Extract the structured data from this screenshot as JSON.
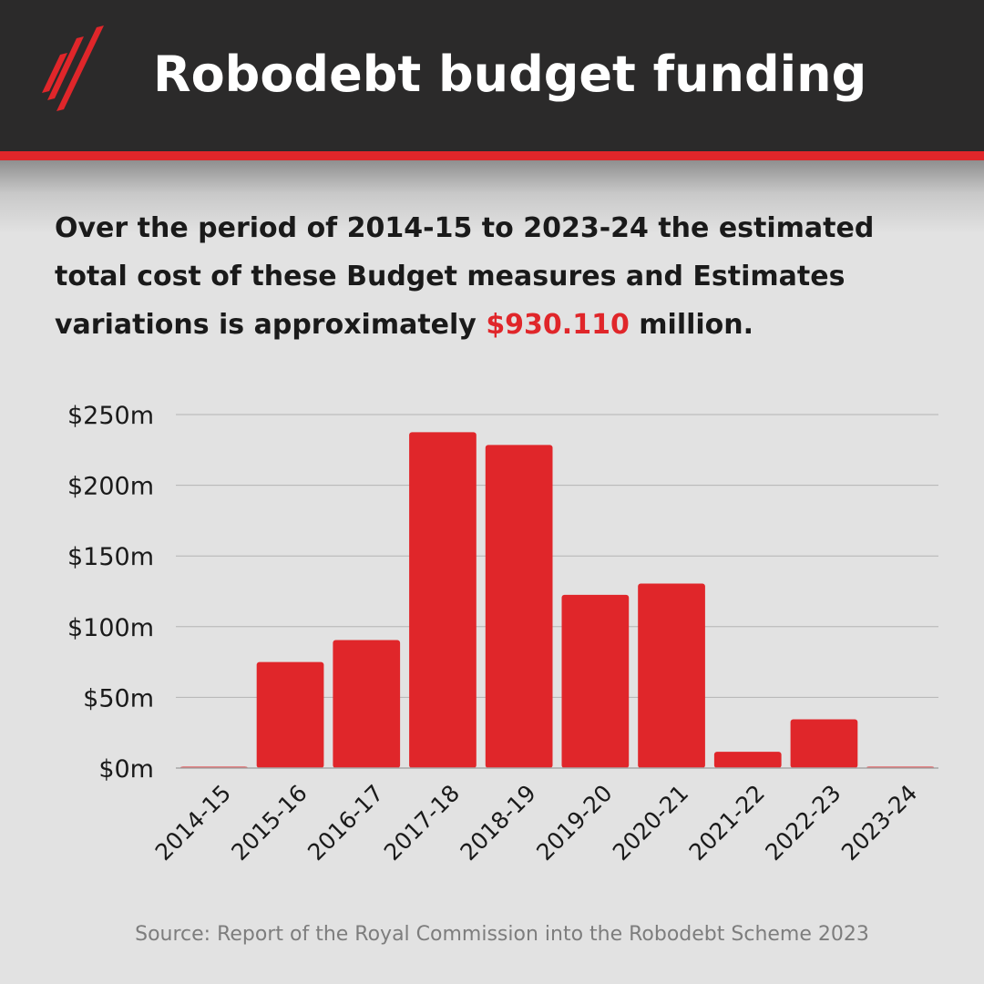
{
  "header": {
    "title": "Robodebt budget funding"
  },
  "summary": {
    "text_before": "Over the period of 2014-15 to 2023-24 the estimated total cost of these Budget measures and Estimates variations is approximately ",
    "highlight": "$930.110",
    "text_after": " million."
  },
  "source": "Source: Report of the Royal Commission into the Robodebt Scheme 2023",
  "colors": {
    "header_bg": "#2b2a2a",
    "accent": "#e0262a",
    "background": "#e2e2e2",
    "text": "#1a1a1a",
    "source_text": "#7d7d7d",
    "gridline": "#b4b4b4"
  },
  "icons": {
    "logo": "sbs-logo-icon"
  },
  "chart_data": {
    "type": "bar",
    "categories": [
      "2014-15",
      "2015-16",
      "2016-17",
      "2017-18",
      "2018-19",
      "2019-20",
      "2020-21",
      "2021-22",
      "2022-23",
      "2023-24"
    ],
    "values": [
      0.5,
      75,
      90.5,
      237.5,
      228.5,
      122.5,
      130.5,
      11.5,
      34.5,
      1
    ],
    "unit": "$m",
    "ylim": [
      0,
      250
    ],
    "yticks": [
      0,
      50,
      100,
      150,
      200,
      250
    ],
    "ytick_labels": [
      "$0m",
      "$50m",
      "$100m",
      "$150m",
      "$200m",
      "$250m"
    ],
    "xlabel": "",
    "ylabel": "",
    "grid": true,
    "legend": "none",
    "bar_color": "#e0262a"
  }
}
